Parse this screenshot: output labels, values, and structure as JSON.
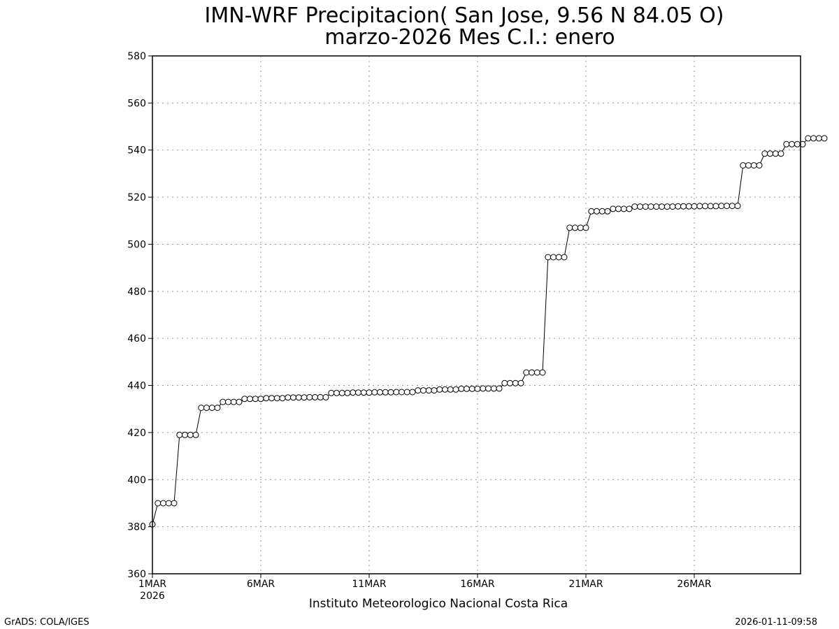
{
  "chart_data": {
    "type": "line",
    "title": "IMN-WRF  Precipitacion( San Jose, 9.56  N 84.05  O)",
    "subtitle": "marzo-2026 Mes C.I.: enero",
    "source": "Instituto Meteorologico Nacional Costa Rica",
    "xlabel": "",
    "ylabel": "",
    "ylim": [
      360,
      580
    ],
    "yticks": [
      360,
      380,
      400,
      420,
      440,
      460,
      480,
      500,
      520,
      540,
      560,
      580
    ],
    "xlim": [
      "2026-03-01 00:00",
      "2026-03-31 00:00"
    ],
    "xticks": [
      {
        "day": 1,
        "label": "1MAR",
        "sublabel": "2026"
      },
      {
        "day": 6,
        "label": "6MAR",
        "sublabel": ""
      },
      {
        "day": 11,
        "label": "11MAR",
        "sublabel": ""
      },
      {
        "day": 16,
        "label": "16MAR",
        "sublabel": ""
      },
      {
        "day": 21,
        "label": "21MAR",
        "sublabel": ""
      },
      {
        "day": 26,
        "label": "26MAR",
        "sublabel": ""
      }
    ],
    "grid": true,
    "time_step_hours": 6,
    "x_start": "2026-03-01 00:00",
    "values": [
      381,
      390,
      390,
      390,
      390,
      419,
      419,
      419,
      419,
      430.5,
      430.5,
      430.5,
      430.5,
      433,
      433,
      433,
      433,
      434.3,
      434.3,
      434.3,
      434.3,
      434.6,
      434.6,
      434.6,
      434.6,
      434.9,
      434.9,
      434.9,
      434.9,
      435,
      435,
      435,
      435,
      436.8,
      436.8,
      436.8,
      436.8,
      437,
      437,
      437,
      437,
      437.1,
      437.1,
      437.1,
      437.1,
      437.2,
      437.2,
      437.2,
      437.2,
      437.9,
      437.9,
      437.9,
      437.9,
      438.3,
      438.3,
      438.3,
      438.3,
      438.6,
      438.6,
      438.6,
      438.6,
      438.7,
      438.7,
      438.7,
      438.7,
      441,
      441,
      441,
      441,
      445.5,
      445.5,
      445.5,
      445.5,
      494.5,
      494.5,
      494.5,
      494.5,
      507,
      507,
      507,
      507,
      514,
      514,
      514,
      514,
      515,
      515,
      515,
      515,
      516,
      516,
      516,
      516,
      516,
      516,
      516,
      516,
      516.1,
      516.1,
      516.1,
      516.1,
      516.2,
      516.2,
      516.2,
      516.2,
      516.3,
      516.3,
      516.3,
      516.3,
      533.5,
      533.5,
      533.5,
      533.5,
      538.5,
      538.5,
      538.5,
      538.5,
      542.5,
      542.5,
      542.5,
      542.5,
      545,
      545,
      545,
      545
    ]
  },
  "footer": {
    "left": "GrADS: COLA/IGES",
    "right": "2026-01-11-09:58"
  }
}
